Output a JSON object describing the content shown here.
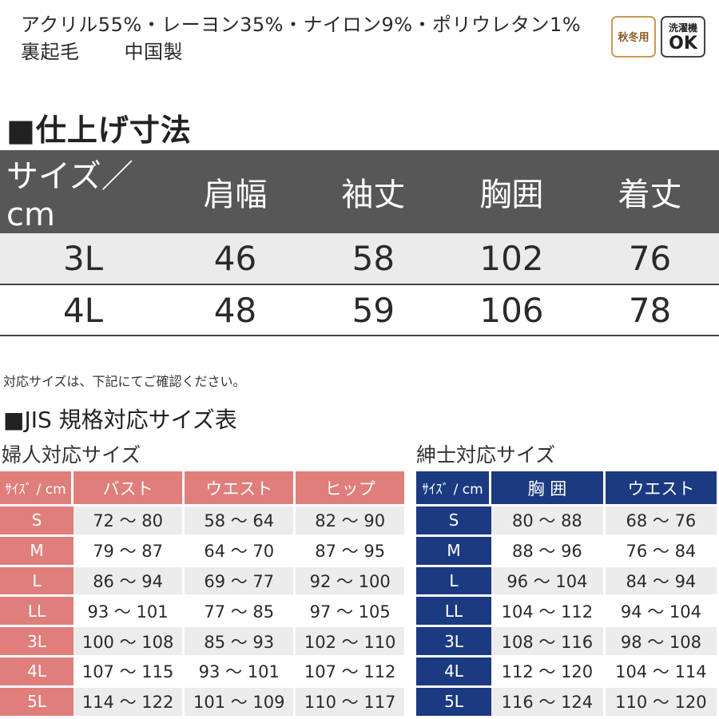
{
  "material": {
    "composition": "アクリル55%・レーヨン35%・ナイロン9%・ポリウレタン1%",
    "lining": "裏起毛",
    "origin": "中国製"
  },
  "badges": {
    "season": "秋冬用",
    "wash_line1": "洗濯機",
    "wash_line2": "OK"
  },
  "finished_size": {
    "title": "■仕上げ寸法",
    "headers": [
      "サイズ／cm",
      "肩幅",
      "袖丈",
      "胸囲",
      "着丈"
    ],
    "rows": [
      [
        "3L",
        "46",
        "58",
        "102",
        "76"
      ],
      [
        "4L",
        "48",
        "59",
        "106",
        "78"
      ]
    ]
  },
  "note": "対応サイズは、下記にてご確認ください。",
  "jis_title": "■JIS 規格対応サイズ表",
  "women": {
    "title": "婦人対応サイズ",
    "headers": [
      "ｻｲｽﾞ / cm",
      "バスト",
      "ウエスト",
      "ヒップ"
    ],
    "rows": [
      [
        "S",
        "72 〜 80",
        "58 〜 64",
        "82 〜 90"
      ],
      [
        "M",
        "79 〜 87",
        "64 〜 70",
        "87 〜 95"
      ],
      [
        "L",
        "86 〜 94",
        "69 〜 77",
        "92 〜 100"
      ],
      [
        "LL",
        "93 〜 101",
        "77 〜 85",
        "97 〜 105"
      ],
      [
        "3L",
        "100 〜 108",
        "85 〜 93",
        "102 〜 110"
      ],
      [
        "4L",
        "107 〜 115",
        "93 〜 101",
        "107 〜 112"
      ],
      [
        "5L",
        "114 〜 122",
        "101 〜 109",
        "110 〜 117"
      ]
    ]
  },
  "men": {
    "title": "紳士対応サイズ",
    "headers": [
      "ｻｲｽﾞ / cm",
      "胸 囲",
      "ウエスト"
    ],
    "rows": [
      [
        "S",
        "80 〜 88",
        "68 〜 76"
      ],
      [
        "M",
        "88 〜 96",
        "76 〜 84"
      ],
      [
        "L",
        "96 〜 104",
        "84 〜 94"
      ],
      [
        "LL",
        "104 〜 112",
        "94 〜 104"
      ],
      [
        "3L",
        "108 〜 116",
        "98 〜 108"
      ],
      [
        "4L",
        "112 〜 120",
        "104 〜 114"
      ],
      [
        "5L",
        "116 〜 124",
        "110 〜 120"
      ]
    ]
  },
  "colors": {
    "women_accent": "#e07e7b",
    "men_accent": "#1c3a82",
    "header_gray": "#575757"
  }
}
